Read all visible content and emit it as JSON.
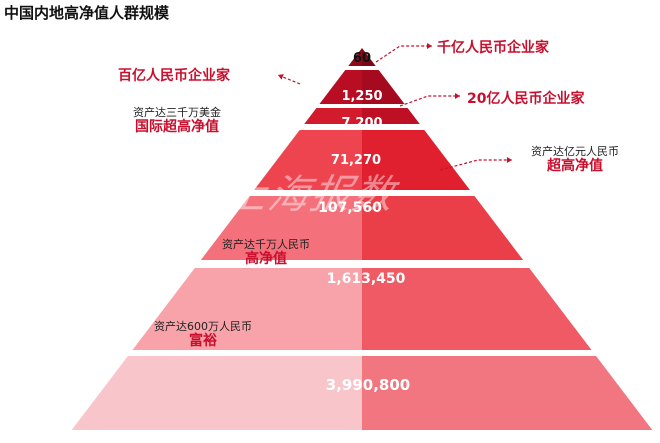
{
  "title": "中国内地高净值人群规模",
  "watermark": "上海报数",
  "tiers": [
    {
      "value": "60"
    },
    {
      "value": "1,250"
    },
    {
      "value": "7,200"
    },
    {
      "value": "71,270"
    },
    {
      "value": "107,560"
    },
    {
      "value": "1,613,450"
    },
    {
      "value": "3,990,800"
    }
  ],
  "labels": {
    "qianyi": "千亿人民币企业家",
    "baiyi": "百亿人民币企业家",
    "ershiyi": "20亿人民币企业家",
    "intl_sub": "资产达三千万美金",
    "intl_main": "国际超高净值",
    "chao_sub": "资产达亿元人民币",
    "chao_main": "超高净值",
    "gao_sub": "资产达千万人民币",
    "gao_main": "高净值",
    "fu_sub": "资产达600万人民币",
    "fu_main": "富裕"
  },
  "colors": {
    "accent": "#c8102e",
    "tiers_left": [
      "#8e0a18",
      "#b80d22",
      "#d21b2c",
      "#ee4450",
      "#f4707a",
      "#f8a3a9",
      "#f8c6ca"
    ],
    "tiers_right": [
      "#7a0713",
      "#a50a1e",
      "#be0f24",
      "#e0202f",
      "#ea3e49",
      "#ef5a64",
      "#f1767f"
    ]
  }
}
